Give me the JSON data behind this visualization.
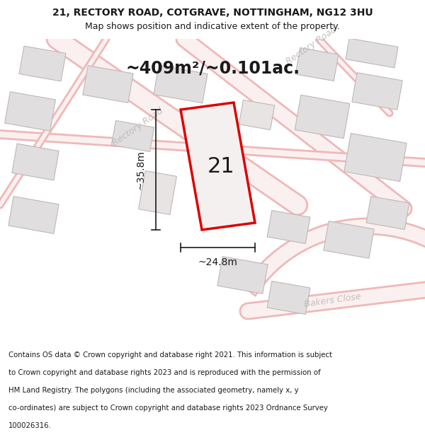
{
  "title_line1": "21, RECTORY ROAD, COTGRAVE, NOTTINGHAM, NG12 3HU",
  "title_line2": "Map shows position and indicative extent of the property.",
  "area_text": "~409m²/~0.101ac.",
  "width_label": "~24.8m",
  "height_label": "~35.8m",
  "plot_number": "21",
  "footer_lines": [
    "Contains OS data © Crown copyright and database right 2021. This information is subject",
    "to Crown copyright and database rights 2023 and is reproduced with the permission of",
    "HM Land Registry. The polygons (including the associated geometry, namely x, y",
    "co-ordinates) are subject to Crown copyright and database rights 2023 Ordnance Survey",
    "100026316."
  ],
  "map_bg": "#faf8f8",
  "road_color_outer": "#f0b8b8",
  "road_color_inner": "#faf0f0",
  "building_fill": "#e0dede",
  "building_edge": "#c0b8b8",
  "red_plot_color": "#dd0000",
  "plot_fill": "#f5f0f0",
  "dimension_color": "#1a1a1a",
  "road_label_color": "#c0b8b8",
  "title_color": "#1a1a1a",
  "footer_color": "#1a1a1a"
}
